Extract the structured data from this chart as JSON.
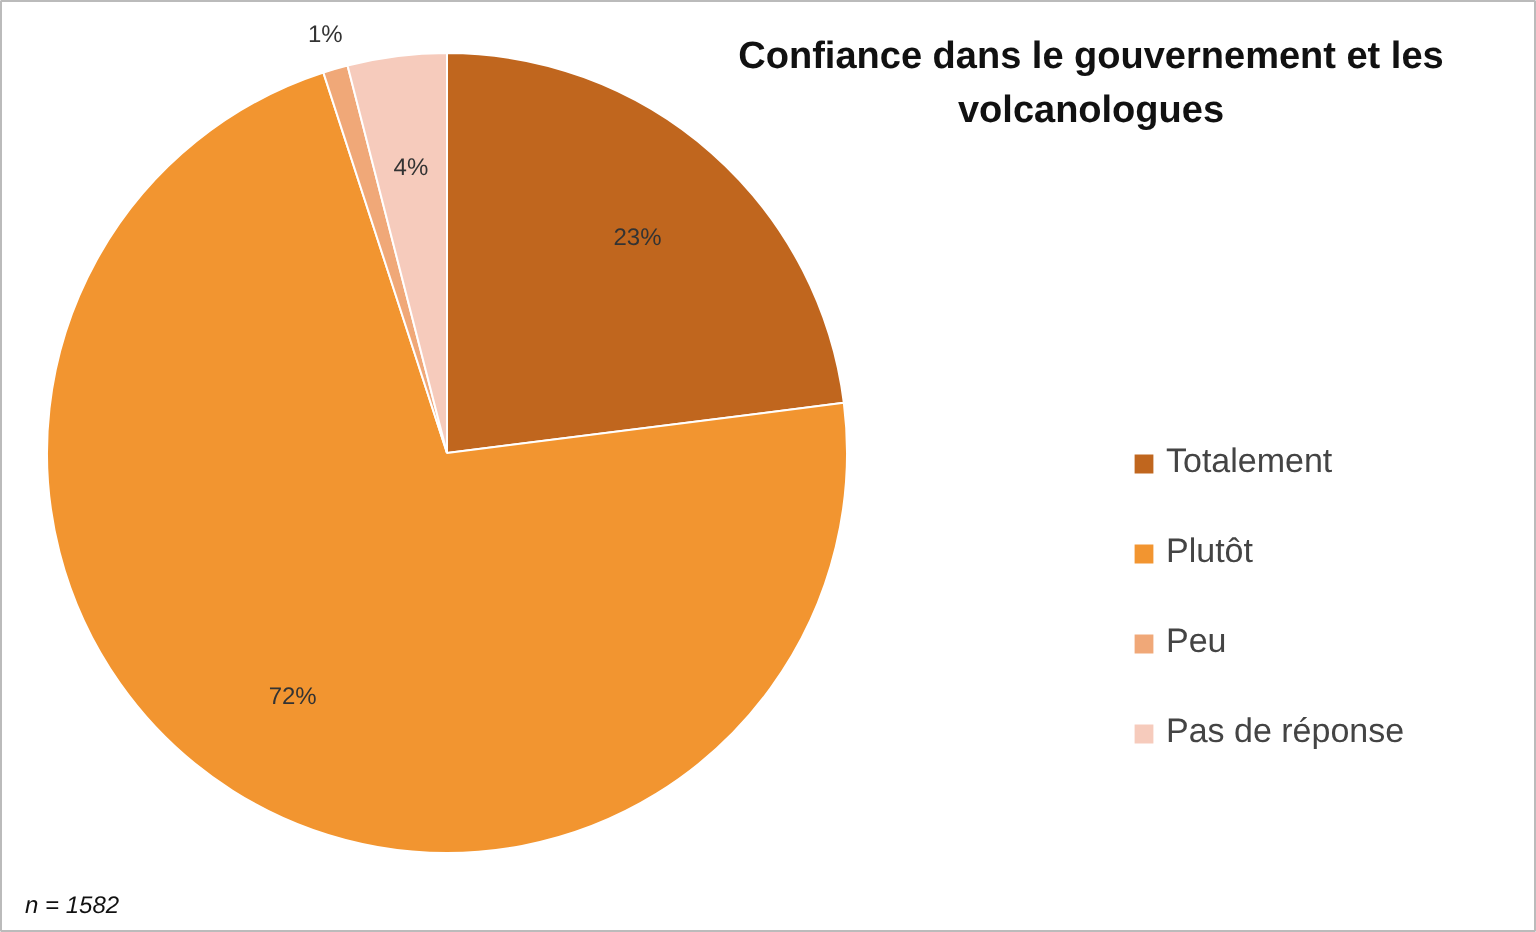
{
  "chart_data": {
    "type": "pie",
    "title": "Confiance dans le gouvernement et les\nvolcanologues",
    "categories": [
      "Totalement",
      "Plutôt",
      "Peu",
      "Pas de réponse"
    ],
    "values": [
      23,
      72,
      1,
      4
    ],
    "colors": [
      "#c0661e",
      "#f29530",
      "#f0a878",
      "#f6cbbc"
    ],
    "value_labels": [
      "23%",
      "72%",
      "1%",
      "4%"
    ],
    "annotations": [
      "n = 1582"
    ],
    "legend": "right"
  }
}
